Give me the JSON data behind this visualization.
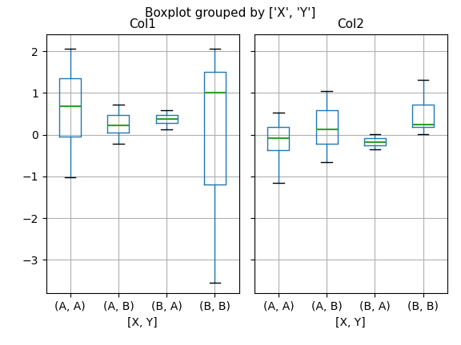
{
  "title": "Boxplot grouped by ['X', 'Y']",
  "col1_label": "Col1",
  "col2_label": "Col2",
  "xlabel": "[X, Y]",
  "groups": [
    "(A, A)",
    "(A, B)",
    "(B, A)",
    "(B, B)"
  ],
  "col1_stats": {
    "(A, A)": {
      "med": 0.68,
      "q1": -0.05,
      "q3": 1.35,
      "whislo": -1.02,
      "whishi": 2.05
    },
    "(A, B)": {
      "med": 0.22,
      "q1": 0.05,
      "q3": 0.48,
      "whislo": -0.22,
      "whishi": 0.72
    },
    "(B, A)": {
      "med": 0.38,
      "q1": 0.28,
      "q3": 0.47,
      "whislo": 0.12,
      "whishi": 0.58
    },
    "(B, B)": {
      "med": 1.0,
      "q1": -1.2,
      "q3": 1.5,
      "whislo": -3.55,
      "whishi": 2.05
    }
  },
  "col2_stats": {
    "(A, A)": {
      "med": -0.08,
      "q1": -0.38,
      "q3": 0.18,
      "whislo": -1.15,
      "whishi": 0.52
    },
    "(A, B)": {
      "med": 0.12,
      "q1": -0.22,
      "q3": 0.58,
      "whislo": -0.65,
      "whishi": 1.05
    },
    "(B, A)": {
      "med": -0.18,
      "q1": -0.26,
      "q3": -0.08,
      "whislo": -0.35,
      "whishi": 0.02
    },
    "(B, B)": {
      "med": 0.25,
      "q1": 0.18,
      "q3": 0.72,
      "whislo": 0.02,
      "whishi": 1.32
    }
  },
  "box_color": "#1f77b4",
  "median_color": "#2ca02c",
  "whisker_color": "#1f77b4",
  "cap_color": "#000000",
  "grid_color": "#b0b0b0",
  "background_color": "#ffffff",
  "sharey": true,
  "ylim": [
    -3.8,
    2.4
  ],
  "figsize": [
    5.76,
    4.32
  ],
  "dpi": 100
}
